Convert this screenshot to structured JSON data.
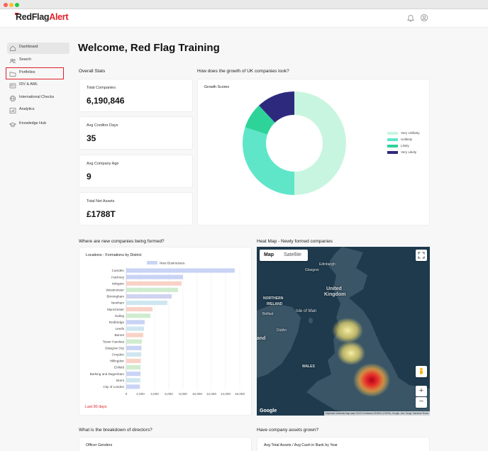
{
  "window": {
    "controls": [
      "close",
      "minimize",
      "maximize"
    ]
  },
  "header": {
    "logo": {
      "prefix": "RedFlag",
      "suffix": "Alert"
    },
    "icons": [
      "bell-icon",
      "user-icon"
    ]
  },
  "sidebar": {
    "items": [
      {
        "label": "Dashboard",
        "icon": "home-icon",
        "active": true
      },
      {
        "label": "Search",
        "icon": "people-icon",
        "active": false
      },
      {
        "label": "Portfolios",
        "icon": "folder-icon",
        "active": false,
        "highlighted": true
      },
      {
        "label": "IDV & AML",
        "icon": "id-card-icon",
        "active": false
      },
      {
        "label": "International Checks",
        "icon": "globe-icon",
        "active": false
      },
      {
        "label": "Analytics",
        "icon": "chart-icon",
        "active": false
      },
      {
        "label": "Knowledge Hub",
        "icon": "graduation-cap-icon",
        "active": false
      }
    ]
  },
  "page": {
    "title": "Welcome, Red Flag Training"
  },
  "overall_stats": {
    "title": "Overall Stats",
    "cards": [
      {
        "label": "Total Companies",
        "value": "6,190,846"
      },
      {
        "label": "Avg Creditor Days",
        "value": "35"
      },
      {
        "label": "Avg Company Age",
        "value": "9"
      },
      {
        "label": "Total Net Assets",
        "value": "£1788T"
      }
    ]
  },
  "growth": {
    "question": "How does the growth of UK companies look?",
    "card_title": "Growth Scores",
    "legend": [
      "Very Unlikely",
      "Unlikely",
      "Likely",
      "Very Likely"
    ]
  },
  "formations": {
    "question": "Where are new companies being formed?",
    "card_title": "Locations - Formations by District",
    "footer": "Last 90 days"
  },
  "heatmap": {
    "question": "Heat Map - Newly formed companies",
    "tabs": [
      "Map",
      "Satellite"
    ],
    "labels": {
      "edinburgh": "Edinburgh",
      "glasgow": "Glasgow",
      "uk_line1": "United",
      "uk_line2": "Kingdom",
      "northern_ireland1": "NORTHERN",
      "northern_ireland2": "IRELAND",
      "isle_of_man": "Isle of Man",
      "belfast": "Belfast",
      "dublin": "Dublin",
      "wales": "WALES",
      "ireland_fragment": "and",
      "google": "Google",
      "attribution": "Keyboard shortcuts  Map data ©2023 GeoBasis-DE/BKG (©2009), Google, Inst. Geogr. Nacional  Terms"
    }
  },
  "directors": {
    "question": "What is the breakdown of directors?",
    "card_title": "Officer Genders"
  },
  "assets": {
    "question": "Have company assets grown?",
    "card_title": "Avg Total Assets / Avg Cash in Bank by Year"
  },
  "colors": {
    "brand_red": "#e0202a",
    "very_unlikely": "#c8f5e0",
    "unlikely": "#5fe6c8",
    "likely": "#2ed39a",
    "very_likely": "#2d2a7e"
  },
  "chart_data": [
    {
      "type": "pie",
      "title": "Growth Scores",
      "categories": [
        "Very Unlikely",
        "Unlikely",
        "Likely",
        "Very Likely"
      ],
      "values": [
        50,
        30,
        8,
        12
      ],
      "colors": [
        "#c8f5e0",
        "#5fe6c8",
        "#2ed39a",
        "#2d2a7e"
      ],
      "donut": true,
      "legend": "right"
    },
    {
      "type": "bar",
      "orientation": "horizontal",
      "title": "Locations - Formations by District",
      "series": [
        {
          "name": "New Businesses"
        }
      ],
      "categories": [
        "Camden",
        "Hackney",
        "Islington",
        "Westminster",
        "Birmingham",
        "Newham",
        "Manchester",
        "Ealing",
        "Redbridge",
        "Leeds",
        "Barnet",
        "Tower Hamlets",
        "Glasgow City",
        "Croydon",
        "Hillingdon",
        "Enfield",
        "Barking and Dagenham",
        "Brent",
        "City of London"
      ],
      "values": [
        15300,
        8000,
        7800,
        7300,
        6400,
        5800,
        3700,
        3400,
        2600,
        2500,
        2400,
        2200,
        2150,
        2100,
        2050,
        2000,
        2000,
        1950,
        1900
      ],
      "colors": [
        "#c9d3f5",
        "#c9d3f5",
        "#f9d2c7",
        "#cfeccf",
        "#cfd3f0",
        "#cfe6f0",
        "#f9d2c7",
        "#cfeccf",
        "#c9d3f5",
        "#cfe6f0",
        "#f9d2c7",
        "#cfeccf",
        "#c9d3f5",
        "#cfe6f0",
        "#f9d2c7",
        "#cfeccf",
        "#c9d3f5",
        "#cfe6f0",
        "#c9d3f5"
      ],
      "xticks": [
        "0",
        "2,000",
        "4,000",
        "6,000",
        "8,000",
        "10,000",
        "12,000",
        "14,000",
        "16,000"
      ],
      "xlim": [
        0,
        16000
      ],
      "grid": true,
      "legend": "top"
    }
  ]
}
